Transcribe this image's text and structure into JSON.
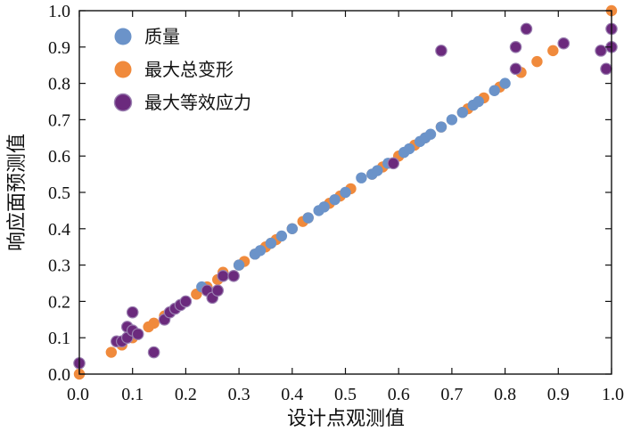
{
  "chart_data": {
    "type": "scatter",
    "title": "",
    "xlabel": "设计点观测值",
    "ylabel": "响应面预测值",
    "xlim": [
      0.0,
      1.0
    ],
    "ylim": [
      0.0,
      1.0
    ],
    "xticks": [
      "0.0",
      "0.1",
      "0.2",
      "0.3",
      "0.4",
      "0.5",
      "0.6",
      "0.7",
      "0.8",
      "0.9",
      "1.0"
    ],
    "yticks": [
      "0.0",
      "0.1",
      "0.2",
      "0.3",
      "0.4",
      "0.5",
      "0.6",
      "0.7",
      "0.8",
      "0.9",
      "1.0"
    ],
    "grid": false,
    "legend_position": "top-left",
    "series": [
      {
        "name": "质量",
        "color": "#6b93c9",
        "points": [
          [
            0.0,
            0.03
          ],
          [
            0.23,
            0.24
          ],
          [
            0.3,
            0.3
          ],
          [
            0.33,
            0.33
          ],
          [
            0.34,
            0.34
          ],
          [
            0.36,
            0.36
          ],
          [
            0.38,
            0.38
          ],
          [
            0.4,
            0.4
          ],
          [
            0.43,
            0.43
          ],
          [
            0.45,
            0.45
          ],
          [
            0.46,
            0.46
          ],
          [
            0.48,
            0.48
          ],
          [
            0.5,
            0.5
          ],
          [
            0.53,
            0.54
          ],
          [
            0.55,
            0.55
          ],
          [
            0.56,
            0.56
          ],
          [
            0.58,
            0.58
          ],
          [
            0.61,
            0.61
          ],
          [
            0.62,
            0.62
          ],
          [
            0.64,
            0.64
          ],
          [
            0.65,
            0.65
          ],
          [
            0.66,
            0.66
          ],
          [
            0.68,
            0.68
          ],
          [
            0.7,
            0.7
          ],
          [
            0.72,
            0.72
          ],
          [
            0.74,
            0.74
          ],
          [
            0.75,
            0.75
          ],
          [
            0.78,
            0.78
          ],
          [
            0.8,
            0.8
          ]
        ]
      },
      {
        "name": "最大总变形",
        "color": "#f08a3c",
        "points": [
          [
            0.0,
            0.0
          ],
          [
            0.06,
            0.06
          ],
          [
            0.08,
            0.08
          ],
          [
            0.1,
            0.1
          ],
          [
            0.11,
            0.11
          ],
          [
            0.13,
            0.13
          ],
          [
            0.14,
            0.14
          ],
          [
            0.16,
            0.16
          ],
          [
            0.17,
            0.17
          ],
          [
            0.19,
            0.19
          ],
          [
            0.2,
            0.2
          ],
          [
            0.22,
            0.22
          ],
          [
            0.24,
            0.24
          ],
          [
            0.26,
            0.26
          ],
          [
            0.27,
            0.28
          ],
          [
            0.3,
            0.3
          ],
          [
            0.31,
            0.31
          ],
          [
            0.33,
            0.33
          ],
          [
            0.35,
            0.35
          ],
          [
            0.36,
            0.36
          ],
          [
            0.37,
            0.37
          ],
          [
            0.4,
            0.4
          ],
          [
            0.42,
            0.42
          ],
          [
            0.43,
            0.43
          ],
          [
            0.47,
            0.47
          ],
          [
            0.49,
            0.49
          ],
          [
            0.51,
            0.51
          ],
          [
            0.55,
            0.55
          ],
          [
            0.57,
            0.57
          ],
          [
            0.6,
            0.6
          ],
          [
            0.63,
            0.63
          ],
          [
            0.65,
            0.65
          ],
          [
            0.68,
            0.68
          ],
          [
            0.72,
            0.72
          ],
          [
            0.73,
            0.73
          ],
          [
            0.76,
            0.76
          ],
          [
            0.79,
            0.79
          ],
          [
            0.83,
            0.83
          ],
          [
            0.86,
            0.86
          ],
          [
            0.89,
            0.89
          ],
          [
            1.0,
            1.0
          ]
        ]
      },
      {
        "name": "最大等效应力",
        "color": "#6b2a7d",
        "points": [
          [
            0.0,
            0.03
          ],
          [
            0.07,
            0.09
          ],
          [
            0.08,
            0.09
          ],
          [
            0.09,
            0.1
          ],
          [
            0.09,
            0.13
          ],
          [
            0.1,
            0.12
          ],
          [
            0.1,
            0.17
          ],
          [
            0.11,
            0.11
          ],
          [
            0.14,
            0.06
          ],
          [
            0.16,
            0.15
          ],
          [
            0.17,
            0.17
          ],
          [
            0.18,
            0.18
          ],
          [
            0.19,
            0.19
          ],
          [
            0.2,
            0.2
          ],
          [
            0.24,
            0.23
          ],
          [
            0.25,
            0.21
          ],
          [
            0.26,
            0.23
          ],
          [
            0.27,
            0.27
          ],
          [
            0.29,
            0.27
          ],
          [
            0.59,
            0.58
          ],
          [
            0.68,
            0.89
          ],
          [
            0.82,
            0.84
          ],
          [
            0.82,
            0.9
          ],
          [
            0.84,
            0.95
          ],
          [
            0.91,
            0.91
          ],
          [
            0.98,
            0.89
          ],
          [
            0.99,
            0.84
          ],
          [
            1.0,
            0.95
          ],
          [
            1.0,
            0.9
          ]
        ]
      }
    ]
  }
}
